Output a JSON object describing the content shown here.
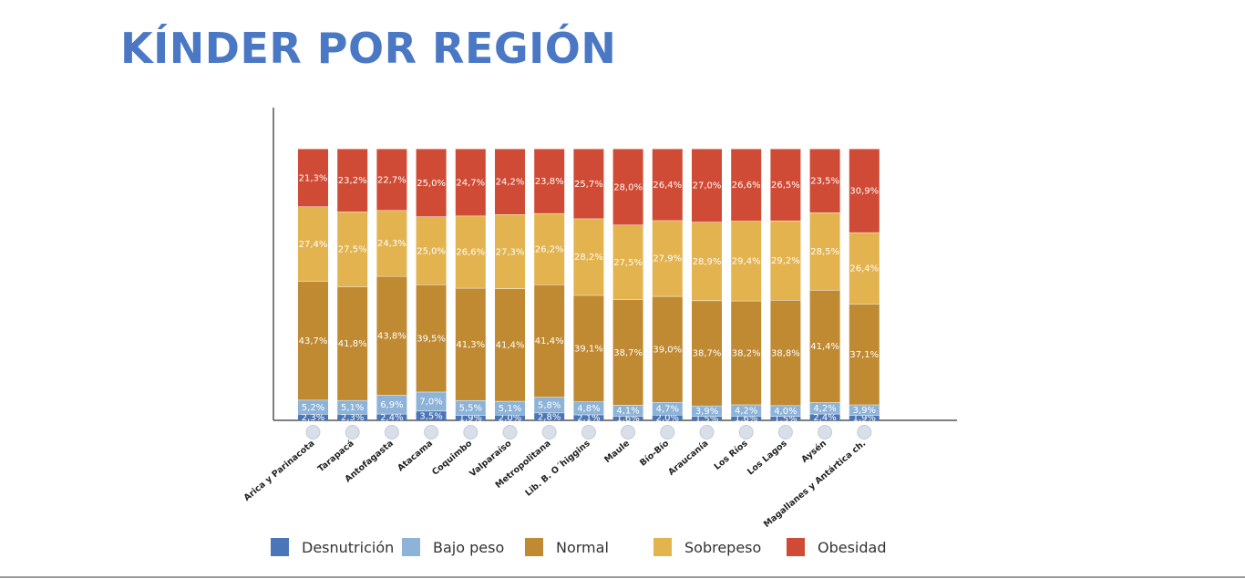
{
  "title": "KÍNDER POR REGIÓN",
  "chart_data": {
    "type": "bar",
    "stacked": true,
    "percent_stacked": true,
    "title": "",
    "xlabel": "",
    "ylabel": "",
    "grid": false,
    "legend_position": "bottom",
    "categories": [
      "Arica y Parinacota",
      "Tarapacá",
      "Antofagasta",
      "Atacama",
      "Coquimbo",
      "Valparaíso",
      "Metropolitana",
      "Lib. B. O´higgins",
      "Maule",
      "Bío-Bío",
      "Araucanía",
      "Los Ríos",
      "Los Lagos",
      "Aysén",
      "Magallanes y Antártica ch."
    ],
    "series": [
      {
        "name": "Desnutrición",
        "color": "#4a76b9",
        "values": [
          2.3,
          2.3,
          2.4,
          3.5,
          1.9,
          2.0,
          2.8,
          2.1,
          1.6,
          2.0,
          1.5,
          1.6,
          1.5,
          2.4,
          1.9
        ],
        "labels": [
          "2,3%",
          "2,3%",
          "2,4%",
          "3,5%",
          "1,9%",
          "2,0%",
          "2,8%",
          "2,1%",
          "1,6%",
          "2,0%",
          "1,5%",
          "1,6%",
          "1,5%",
          "2,4%",
          "1,9%"
        ]
      },
      {
        "name": "Bajo peso",
        "color": "#8db3d8",
        "values": [
          5.2,
          5.1,
          6.9,
          7.0,
          5.5,
          5.1,
          5.8,
          4.8,
          4.1,
          4.7,
          3.9,
          4.2,
          4.0,
          4.2,
          3.9
        ],
        "labels": [
          "5,2%",
          "5,1%",
          "6,9%",
          "7,0%",
          "5,5%",
          "5,1%",
          "5,8%",
          "4,8%",
          "4,1%",
          "4,7%",
          "3,9%",
          "4,2%",
          "4,0%",
          "4,2%",
          "3,9%"
        ]
      },
      {
        "name": "Normal",
        "color": "#bf8a32",
        "values": [
          43.7,
          41.8,
          43.8,
          39.5,
          41.3,
          41.4,
          41.4,
          39.1,
          38.7,
          39.0,
          38.7,
          38.2,
          38.8,
          41.4,
          37.1
        ],
        "labels": [
          "43,7%",
          "41,8%",
          "43,8%",
          "39,5%",
          "41,3%",
          "41,4%",
          "41,4%",
          "39,1%",
          "38,7%",
          "39,0%",
          "38,7%",
          "38,2%",
          "38,8%",
          "41,4%",
          "37,1%"
        ]
      },
      {
        "name": "Sobrepeso",
        "color": "#e2b34f",
        "values": [
          27.4,
          27.5,
          24.3,
          25.0,
          26.6,
          27.3,
          26.2,
          28.2,
          27.5,
          27.9,
          28.9,
          29.4,
          29.2,
          28.5,
          26.4
        ],
        "labels": [
          "27,4%",
          "27,5%",
          "24,3%",
          "25,0%",
          "26,6%",
          "27,3%",
          "26,2%",
          "28,2%",
          "27,5%",
          "27,9%",
          "28,9%",
          "29,4%",
          "29,2%",
          "28,5%",
          "26,4%"
        ]
      },
      {
        "name": "Obesidad",
        "color": "#cf4b35",
        "values": [
          21.3,
          23.2,
          22.7,
          25.0,
          24.7,
          24.2,
          23.8,
          25.7,
          28.0,
          26.4,
          27.0,
          26.6,
          26.5,
          23.5,
          30.9
        ],
        "labels": [
          "21,3%",
          "23,2%",
          "22,7%",
          "25,0%",
          "24,7%",
          "24,2%",
          "23,8%",
          "25,7%",
          "28,0%",
          "26,4%",
          "27,0%",
          "26,6%",
          "26,5%",
          "23,5%",
          "30,9%"
        ]
      }
    ]
  }
}
